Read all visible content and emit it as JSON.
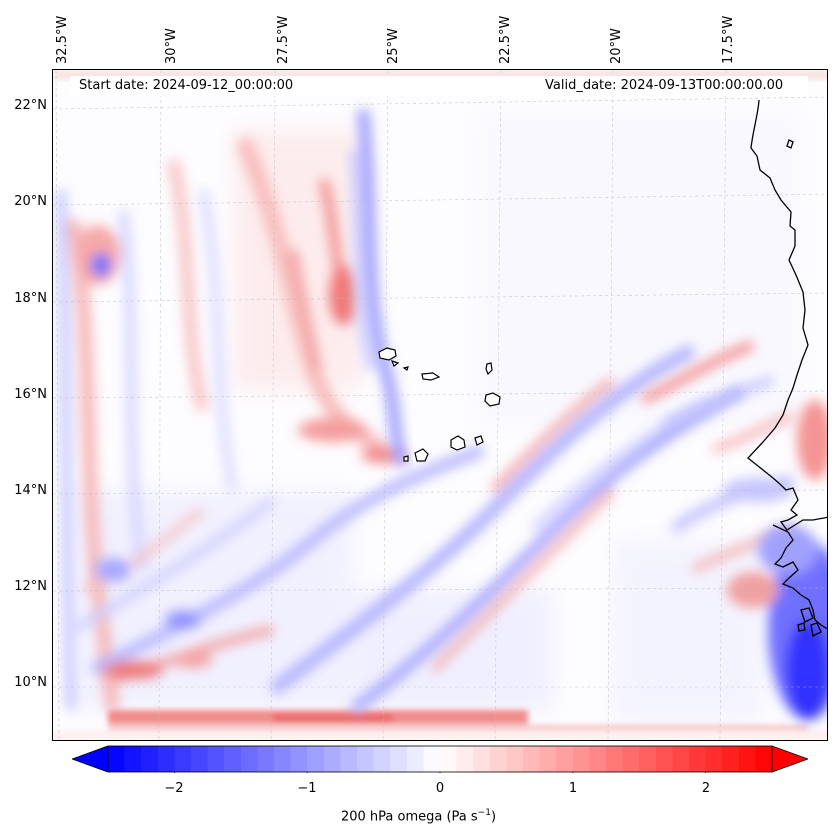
{
  "map": {
    "start_label": "Start date: 2024-09-12_00:00:00",
    "valid_label": "Valid_date: 2024-09-13T00:00:00.00",
    "lon_labels": [
      "32.5°W",
      "30°W",
      "27.5°W",
      "25°W",
      "22.5°W",
      "20°W",
      "17.5°W"
    ],
    "lat_labels": [
      "22°N",
      "20°N",
      "18°N",
      "16°N",
      "14°N",
      "12°N",
      "10°N"
    ],
    "extent": {
      "lon_min": -32.8,
      "lon_max": -15.2,
      "lat_min": 8.8,
      "lat_max": 22.8
    },
    "field": "200 hPa omega",
    "features": [
      "cape-verde-islands",
      "west-africa-coastline"
    ]
  },
  "colorbar": {
    "title_text": "200 hPa omega (Pa s",
    "title_exp": "−1",
    "title_close": ")",
    "ticks": [
      "−2",
      "−1",
      "0",
      "1",
      "2"
    ],
    "tick_values": [
      -2,
      -1,
      0,
      1,
      2
    ],
    "vmin": -2.5,
    "vmax": 2.5,
    "extend": "both",
    "colormap": "bwr",
    "color_min": "#0000ff",
    "color_mid": "#ffffff",
    "color_max": "#ff0000"
  }
}
